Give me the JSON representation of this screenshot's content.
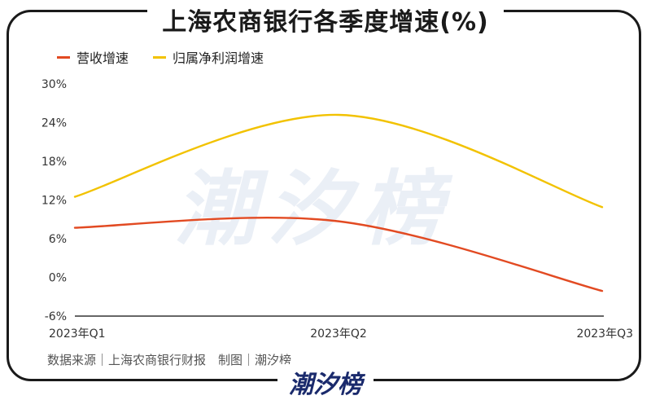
{
  "title": "上海农商银行各季度增速(%)",
  "source": "数据来源｜上海农商银行财报　制图｜潮汐榜",
  "brand": "潮汐榜",
  "watermark": "潮汐榜",
  "colors": {
    "series1": "#e24a22",
    "series2": "#f2c200",
    "axis": "#333333"
  },
  "chart_data": {
    "type": "line",
    "x": [
      "2023年Q1",
      "2023年Q2",
      "2023年Q3"
    ],
    "series": [
      {
        "name": "营收增速",
        "values": [
          7.7,
          8.7,
          -2.1
        ]
      },
      {
        "name": "归属净利润增速",
        "values": [
          12.5,
          25.2,
          10.9
        ]
      }
    ],
    "yticks": [
      "30%",
      "24%",
      "18%",
      "12%",
      "6%",
      "0%",
      "-6%"
    ],
    "ylim": [
      -6,
      30
    ],
    "legend": "top-left",
    "grid": false
  }
}
